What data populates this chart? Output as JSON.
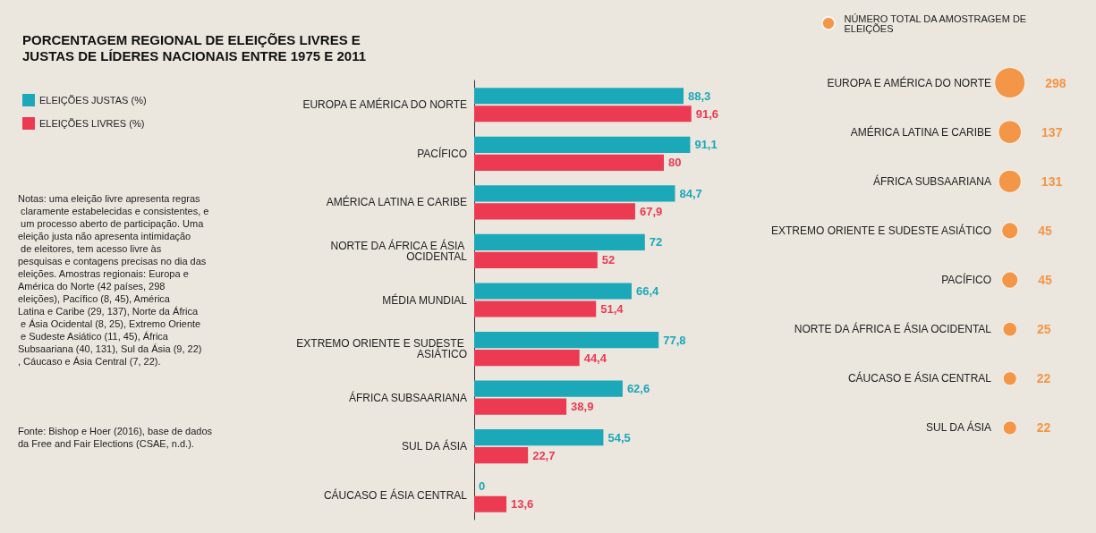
{
  "chart_data": [
    {
      "type": "bar",
      "orientation": "horizontal",
      "title": "PORCENTAGEM REGIONAL DE ELEIÇÕES LIVRES E JUSTAS DE LÍDERES NACIONAIS ENTRE 1975 E 2011",
      "categories": [
        "EUROPA E AMÉRICA DO NORTE",
        "PACÍFICO",
        "AMÉRICA LATINA E CARIBE",
        "NORTE DA ÁFRICA E ÁSIA OCIDENTAL",
        "MÉDIA MUNDIAL",
        "EXTREMO ORIENTE E SUDESTE ASIÁTICO",
        "ÁFRICA SUBSAARIANA",
        "SUL DA ÁSIA",
        "CÁUCASO E ÁSIA CENTRAL"
      ],
      "series": [
        {
          "name": "ELEIÇÕES JUSTAS (%)",
          "color": "#1ba8b8",
          "values": [
            88.3,
            91.1,
            84.7,
            72,
            66.4,
            77.8,
            62.6,
            54.5,
            0
          ],
          "value_labels": [
            "88,3",
            "91,1",
            "84,7",
            "72",
            "66,4",
            "77,8",
            "62,6",
            "54,5",
            "0"
          ]
        },
        {
          "name": "ELEIÇÕES LIVRES (%)",
          "color": "#ec3a52",
          "values": [
            91.6,
            80,
            67.9,
            52,
            51.4,
            44.4,
            38.9,
            22.7,
            13.6
          ],
          "value_labels": [
            "91,6",
            "80",
            "67,9",
            "52",
            "51,4",
            "44,4",
            "38,9",
            "22,7",
            "13,6"
          ]
        }
      ],
      "legend": "left",
      "annotations": [
        "Notas: uma eleição livre apresenta regras claramente estabelecidas e consistentes, e um processo aberto de participação. Uma eleição justa não apresenta intimidação de eleitores, tem acesso livre às pesquisas e contagens precisas no dia das eleições. Amostras regionais: Europa e América do Norte (42 países, 298 eleições), Pacífico (8, 45), América Latina e Caribe (29, 137), Norte da África e Ásia Ocidental (8, 25), Extremo Oriente e Sudeste Asiático (11, 45), África Subsaariana (40, 131), Sul da Ásia (9, 22), Cáucaso e Ásia Central (7, 22).",
        "Fonte: Bishop e Hoer (2016), base de dados da Free and Fair Elections (CSAE, n.d.)."
      ]
    },
    {
      "type": "other",
      "categories": [
        "EUROPA E AMÉRICA DO NORTE",
        "AMÉRICA LATINA E CARIBE",
        "ÁFRICA SUBSAARIANA",
        "EXTREMO ORIENTE E SUDESTE ASIÁTICO",
        "PACÍFICO",
        "NORTE DA ÁFRICA E ÁSIA OCIDENTAL",
        "CÁUCASO E ÁSIA CENTRAL",
        "SUL DA ÁSIA"
      ],
      "series": [
        {
          "name": "NÚMERO TOTAL DA AMOSTRAGEM DE ELEIÇÕES",
          "color": "#f58220",
          "values": [
            298,
            137,
            131,
            45,
            45,
            25,
            22,
            22
          ]
        }
      ],
      "data_labels": true,
      "legend": "top"
    }
  ]
}
